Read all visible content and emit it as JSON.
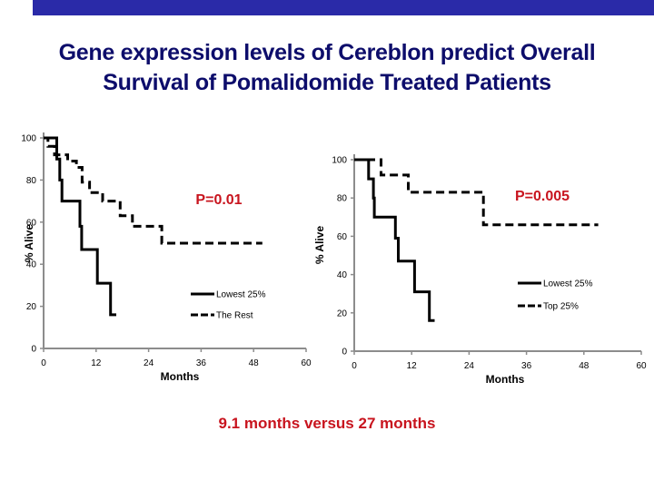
{
  "header": {
    "title_line1": "Gene expression levels of Cereblon predict Overall",
    "title_line2": "Survival of Pomalidomide Treated Patients",
    "bar_color": "#2a2aa8",
    "title_color": "#0d0d6b"
  },
  "summary_text": "9.1 months versus 27 months",
  "chart_data": [
    {
      "type": "line",
      "subtype": "kaplan-meier step",
      "title": "",
      "xlabel": "Months",
      "ylabel": "% Alive",
      "xlim": [
        0,
        60
      ],
      "ylim": [
        0,
        100
      ],
      "xticks": [
        0,
        12,
        24,
        36,
        48,
        60
      ],
      "yticks": [
        0,
        20,
        40,
        60,
        80,
        100
      ],
      "grid": false,
      "annotation": "P=0.01",
      "annotation_color": "#c8141e",
      "legend_position": "bottom-right",
      "series": [
        {
          "name": "Lowest 25%",
          "style": "solid",
          "x": [
            0,
            3.0,
            3.0,
            3.7,
            3.7,
            4.2,
            4.2,
            8.3,
            8.3,
            8.7,
            8.7,
            12.3,
            12.3,
            15.3,
            15.3,
            16.6
          ],
          "y": [
            100,
            100,
            90,
            90,
            80,
            80,
            70,
            70,
            58,
            58,
            47,
            47,
            31,
            31,
            16,
            16
          ]
        },
        {
          "name": "The Rest",
          "style": "dashed",
          "x": [
            0,
            1.0,
            1.0,
            2.5,
            2.5,
            5.5,
            5.5,
            7.5,
            7.5,
            8.8,
            8.8,
            10.5,
            10.5,
            13.5,
            13.5,
            17.5,
            17.5,
            20.3,
            20.3,
            27.0,
            27.0,
            50.0
          ],
          "y": [
            100,
            100,
            96,
            96,
            92,
            92,
            89,
            89,
            86,
            86,
            79,
            79,
            74,
            74,
            70,
            70,
            63,
            63,
            58,
            58,
            50,
            50
          ]
        }
      ]
    },
    {
      "type": "line",
      "subtype": "kaplan-meier step",
      "title": "",
      "xlabel": "Months",
      "ylabel": "% Alive",
      "xlim": [
        0,
        60
      ],
      "ylim": [
        0,
        100
      ],
      "xticks": [
        0,
        12,
        24,
        36,
        48,
        60
      ],
      "yticks": [
        0,
        20,
        40,
        60,
        80,
        100
      ],
      "grid": false,
      "annotation": "P=0.005",
      "annotation_color": "#c8141e",
      "legend_position": "bottom-right",
      "series": [
        {
          "name": "Lowest 25%",
          "style": "solid",
          "x": [
            0,
            3.0,
            3.0,
            4.0,
            4.0,
            4.2,
            4.2,
            8.6,
            8.6,
            9.2,
            9.2,
            12.6,
            12.6,
            15.7,
            15.7,
            16.8
          ],
          "y": [
            100,
            100,
            90,
            90,
            80,
            80,
            70,
            70,
            59,
            59,
            47,
            47,
            31,
            31,
            16,
            16
          ]
        },
        {
          "name": "Top 25%",
          "style": "dashed",
          "x": [
            0,
            5.6,
            5.6,
            11.3,
            11.3,
            27.0,
            27.0,
            51.0
          ],
          "y": [
            100,
            100,
            92,
            92,
            83,
            83,
            66,
            66
          ]
        }
      ]
    }
  ]
}
